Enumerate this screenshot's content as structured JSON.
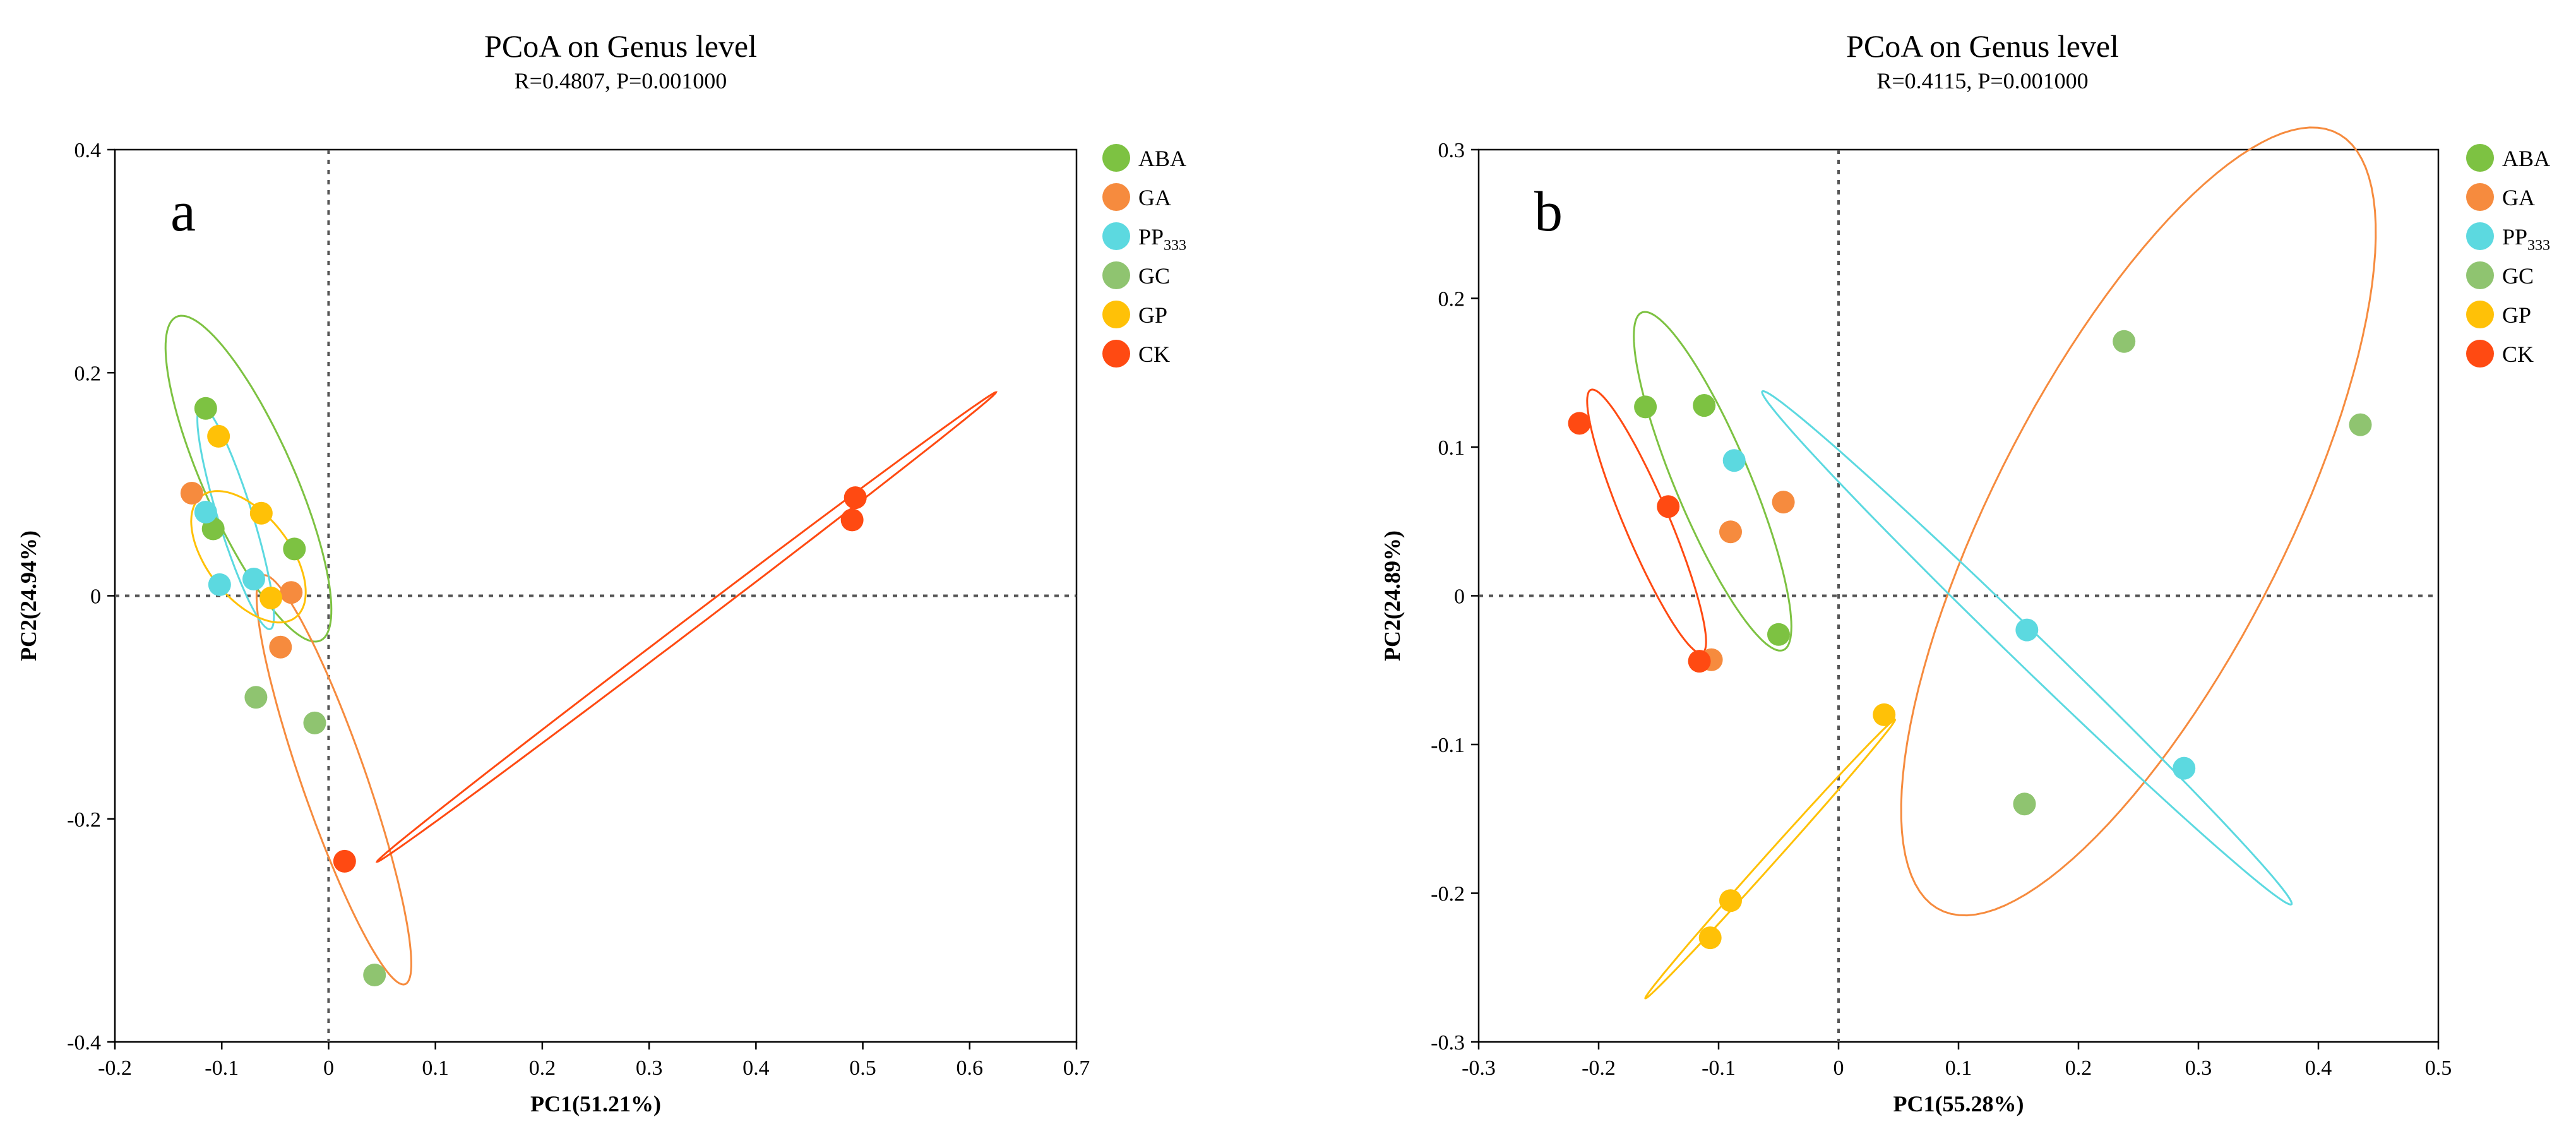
{
  "chart_data": [
    {
      "type": "scatter",
      "panel_label": "a",
      "title": "PCoA on Genus level",
      "subtitle": "R=0.4807, P=0.001000",
      "xlabel": "PC1(51.21%)",
      "ylabel": "PC2(24.94%)",
      "xlim": [
        -0.2,
        0.7
      ],
      "ylim": [
        -0.4,
        0.4
      ],
      "xticks": [
        -0.2,
        -0.1,
        0,
        0.1,
        0.2,
        0.3,
        0.4,
        0.5,
        0.6,
        0.7
      ],
      "xtick_labels": [
        "-0.2",
        "-0.1",
        "0",
        "0.1",
        "0.2",
        "0.3",
        "0.4",
        "0.5",
        "0.6",
        "0.7"
      ],
      "yticks": [
        -0.4,
        -0.2,
        0,
        0.2,
        0.4
      ],
      "ytick_labels": [
        "-0.4",
        "-0.2",
        "0",
        "0.2",
        "0.4"
      ],
      "legend_position": "right",
      "series": [
        {
          "name": "ABA",
          "color": "#7DC242",
          "points": [
            [
              -0.115,
              0.168
            ],
            [
              -0.108,
              0.06
            ],
            [
              -0.032,
              0.042
            ]
          ],
          "ellipse": {
            "cx": -0.075,
            "cy": 0.105,
            "a": 0.16,
            "b": 0.042,
            "angle": -65
          }
        },
        {
          "name": "GA",
          "color": "#F68B3E",
          "points": [
            [
              -0.128,
              0.092
            ],
            [
              -0.035,
              0.003
            ],
            [
              -0.045,
              -0.046
            ]
          ],
          "ellipse": {
            "cx": 0.005,
            "cy": -0.165,
            "a": 0.195,
            "b": 0.03,
            "angle": -70
          }
        },
        {
          "name": "PP",
          "name_sub": "333",
          "color": "#5CD9E0",
          "points": [
            [
              -0.115,
              0.075
            ],
            [
              -0.102,
              0.01
            ],
            [
              -0.07,
              0.015
            ]
          ],
          "ellipse": {
            "cx": -0.087,
            "cy": 0.07,
            "a": 0.105,
            "b": 0.016,
            "angle": -72
          }
        },
        {
          "name": "GC",
          "color": "#8FC470",
          "points": [
            [
              -0.068,
              -0.091
            ],
            [
              -0.013,
              -0.114
            ],
            [
              0.043,
              -0.34
            ]
          ],
          "ellipse": null
        },
        {
          "name": "GP",
          "color": "#FFC107",
          "points": [
            [
              -0.103,
              0.143
            ],
            [
              -0.063,
              0.074
            ],
            [
              -0.054,
              -0.002
            ]
          ],
          "ellipse": {
            "cx": -0.075,
            "cy": 0.035,
            "a": 0.07,
            "b": 0.038,
            "angle": -50
          }
        },
        {
          "name": "CK",
          "color": "#FF4A12",
          "points": [
            [
              0.015,
              -0.238
            ],
            [
              0.493,
              0.088
            ],
            [
              0.49,
              0.068
            ]
          ],
          "ellipse": {
            "cx": 0.335,
            "cy": -0.028,
            "a": 0.358,
            "b": 0.0055,
            "angle": 36
          }
        }
      ]
    },
    {
      "type": "scatter",
      "panel_label": "b",
      "title": "PCoA on Genus level",
      "subtitle": "R=0.4115, P=0.001000",
      "xlabel": "PC1(55.28%)",
      "ylabel": "PC2(24.89%)",
      "xlim": [
        -0.3,
        0.5
      ],
      "ylim": [
        -0.3,
        0.3
      ],
      "xticks": [
        -0.3,
        -0.2,
        -0.1,
        0,
        0.1,
        0.2,
        0.3,
        0.4,
        0.5
      ],
      "xtick_labels": [
        "-0.3",
        "-0.2",
        "-0.1",
        "0",
        "0.1",
        "0.2",
        "0.3",
        "0.4",
        "0.5"
      ],
      "yticks": [
        -0.3,
        -0.2,
        -0.1,
        0,
        0.1,
        0.2,
        0.3
      ],
      "ytick_labels": [
        "-0.3",
        "-0.2",
        "-0.1",
        "0",
        "0.1",
        "0.2",
        "0.3"
      ],
      "legend_position": "right",
      "series": [
        {
          "name": "ABA",
          "color": "#7DC242",
          "points": [
            [
              -0.161,
              0.127
            ],
            [
              -0.112,
              0.128
            ],
            [
              -0.05,
              -0.026
            ]
          ],
          "ellipse": {
            "cx": -0.105,
            "cy": 0.077,
            "a": 0.128,
            "b": 0.03,
            "angle": -62
          }
        },
        {
          "name": "GA",
          "color": "#F68B3E",
          "points": [
            [
              -0.09,
              0.043
            ],
            [
              -0.046,
              0.063
            ],
            [
              -0.106,
              -0.043
            ]
          ],
          "ellipse": {
            "cx": 0.25,
            "cy": 0.05,
            "a": 0.31,
            "b": 0.115,
            "angle": 56
          }
        },
        {
          "name": "PP",
          "name_sub": "333",
          "color": "#5CD9E0",
          "points": [
            [
              -0.087,
              0.091
            ],
            [
              0.157,
              -0.023
            ],
            [
              0.288,
              -0.116
            ]
          ],
          "ellipse": {
            "cx": 0.157,
            "cy": -0.035,
            "a": 0.28,
            "b": 0.012,
            "angle": -38
          }
        },
        {
          "name": "GC",
          "color": "#8FC470",
          "points": [
            [
              0.238,
              0.171
            ],
            [
              0.435,
              0.115
            ],
            [
              0.155,
              -0.14
            ]
          ],
          "ellipse": null
        },
        {
          "name": "GP",
          "color": "#FFC107",
          "points": [
            [
              0.038,
              -0.08
            ],
            [
              -0.09,
              -0.205
            ],
            [
              -0.107,
              -0.23
            ]
          ],
          "ellipse": {
            "cx": -0.057,
            "cy": -0.177,
            "a": 0.14,
            "b": 0.004,
            "angle": 42
          }
        },
        {
          "name": "CK",
          "color": "#FF4A12",
          "points": [
            [
              -0.216,
              0.116
            ],
            [
              -0.142,
              0.06
            ],
            [
              -0.116,
              -0.044
            ]
          ],
          "ellipse": {
            "cx": -0.16,
            "cy": 0.05,
            "a": 0.1,
            "b": 0.018,
            "angle": -62
          }
        }
      ]
    }
  ]
}
